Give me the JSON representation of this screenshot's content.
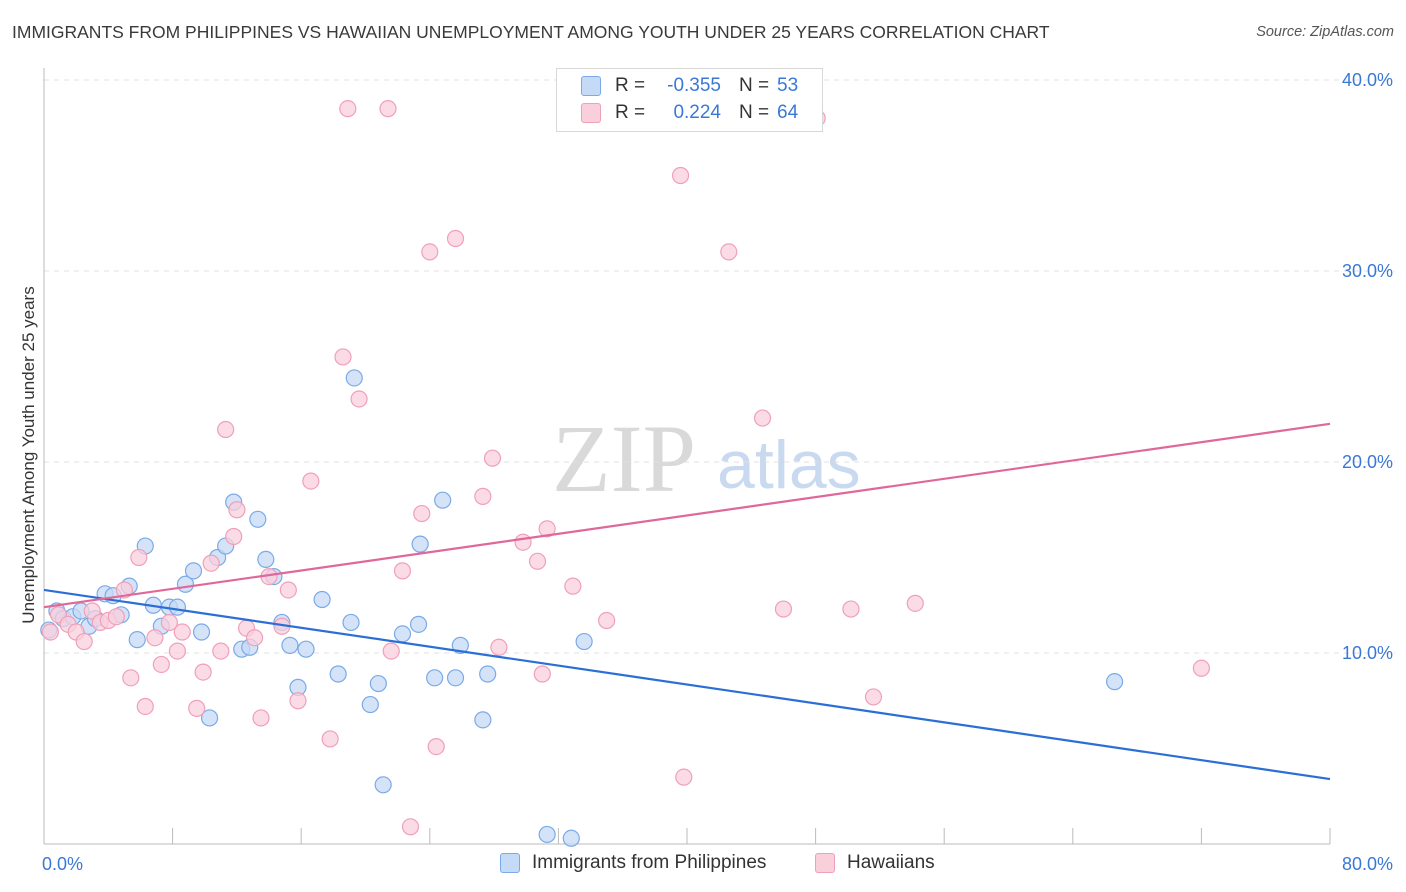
{
  "header": {
    "title": "IMMIGRANTS FROM PHILIPPINES VS HAWAIIAN UNEMPLOYMENT AMONG YOUTH UNDER 25 YEARS CORRELATION CHART",
    "source": "Source: ZipAtlas.com"
  },
  "legend_top": {
    "rows": [
      {
        "r_label": "R =",
        "r_value": "-0.355",
        "n_label": "N =",
        "n_value": "53",
        "color": "#7aaae8",
        "fill": "#c5daf6"
      },
      {
        "r_label": "R =",
        "r_value": "0.224",
        "n_label": "N =",
        "n_value": "64",
        "color": "#f0a0b8",
        "fill": "#f9cfdc"
      }
    ]
  },
  "legend_bottom": {
    "items": [
      {
        "label": "Immigrants from Philippines",
        "color": "#7aaae8",
        "fill": "#c5daf6"
      },
      {
        "label": "Hawaiians",
        "color": "#f0a0b8",
        "fill": "#f9cfdc"
      }
    ]
  },
  "watermark": {
    "zip": "ZIP",
    "atlas": "atlas"
  },
  "chart_data": {
    "type": "scatter",
    "title": "IMMIGRANTS FROM PHILIPPINES VS HAWAIIAN UNEMPLOYMENT AMONG YOUTH UNDER 25 YEARS CORRELATION CHART",
    "xlabel": "",
    "ylabel": "Unemployment Among Youth under 25 years",
    "xlim": [
      0,
      80
    ],
    "ylim": [
      0,
      40
    ],
    "x_tick_labels": [
      {
        "value": 0,
        "label": "0.0%"
      },
      {
        "value": 80,
        "label": "80.0%"
      }
    ],
    "y_tick_labels": [
      {
        "value": 10,
        "label": "10.0%"
      },
      {
        "value": 20,
        "label": "20.0%"
      },
      {
        "value": 30,
        "label": "30.0%"
      },
      {
        "value": 40,
        "label": "40.0%"
      }
    ],
    "grid": true,
    "series": [
      {
        "name": "Immigrants from Philippines",
        "color": "#7aaae8",
        "fill": "#c5daf6",
        "trend_color": "#2b6fd6",
        "trend": {
          "x0": 0,
          "y0": 13.3,
          "x1": 80,
          "y1": 3.4
        },
        "points": [
          [
            0.3,
            11.2
          ],
          [
            0.8,
            12.2
          ],
          [
            1.2,
            11.8
          ],
          [
            1.8,
            11.9
          ],
          [
            2.3,
            12.2
          ],
          [
            2.8,
            11.4
          ],
          [
            3.2,
            11.8
          ],
          [
            3.8,
            13.1
          ],
          [
            4.3,
            13.0
          ],
          [
            4.8,
            12.0
          ],
          [
            5.3,
            13.5
          ],
          [
            5.8,
            10.7
          ],
          [
            6.3,
            15.6
          ],
          [
            6.8,
            12.5
          ],
          [
            7.3,
            11.4
          ],
          [
            7.8,
            12.4
          ],
          [
            8.3,
            12.4
          ],
          [
            8.8,
            13.6
          ],
          [
            9.3,
            14.3
          ],
          [
            9.8,
            11.1
          ],
          [
            10.3,
            6.6
          ],
          [
            10.8,
            15.0
          ],
          [
            11.3,
            15.6
          ],
          [
            11.8,
            17.9
          ],
          [
            12.3,
            10.2
          ],
          [
            12.8,
            10.3
          ],
          [
            13.3,
            17.0
          ],
          [
            13.8,
            14.9
          ],
          [
            14.3,
            14.0
          ],
          [
            14.8,
            11.6
          ],
          [
            15.3,
            10.4
          ],
          [
            15.8,
            8.2
          ],
          [
            16.3,
            10.2
          ],
          [
            17.3,
            12.8
          ],
          [
            18.3,
            8.9
          ],
          [
            19.1,
            11.6
          ],
          [
            19.3,
            24.4
          ],
          [
            20.3,
            7.3
          ],
          [
            20.8,
            8.4
          ],
          [
            21.1,
            3.1
          ],
          [
            22.3,
            11.0
          ],
          [
            23.3,
            11.5
          ],
          [
            23.4,
            15.7
          ],
          [
            24.3,
            8.7
          ],
          [
            24.8,
            18.0
          ],
          [
            25.6,
            8.7
          ],
          [
            25.9,
            10.4
          ],
          [
            27.3,
            6.5
          ],
          [
            27.6,
            8.9
          ],
          [
            31.3,
            0.5
          ],
          [
            32.8,
            0.3
          ],
          [
            33.6,
            10.6
          ],
          [
            66.6,
            8.5
          ]
        ]
      },
      {
        "name": "Hawaiians",
        "color": "#f0a0b8",
        "fill": "#f9cfdc",
        "trend_color": "#e0679a",
        "trend": {
          "x0": 0,
          "y0": 12.4,
          "x1": 80,
          "y1": 22.0
        },
        "points": [
          [
            0.4,
            11.1
          ],
          [
            0.9,
            12.0
          ],
          [
            1.5,
            11.5
          ],
          [
            2.0,
            11.1
          ],
          [
            2.5,
            10.6
          ],
          [
            3.0,
            12.2
          ],
          [
            3.5,
            11.6
          ],
          [
            4.0,
            11.7
          ],
          [
            4.5,
            11.9
          ],
          [
            5.0,
            13.3
          ],
          [
            5.4,
            8.7
          ],
          [
            5.9,
            15.0
          ],
          [
            6.3,
            7.2
          ],
          [
            6.9,
            10.8
          ],
          [
            7.3,
            9.4
          ],
          [
            7.8,
            11.6
          ],
          [
            8.3,
            10.1
          ],
          [
            8.6,
            11.1
          ],
          [
            9.5,
            7.1
          ],
          [
            9.9,
            9.0
          ],
          [
            10.4,
            14.7
          ],
          [
            11.0,
            10.1
          ],
          [
            11.3,
            21.7
          ],
          [
            11.8,
            16.1
          ],
          [
            12.0,
            17.5
          ],
          [
            12.6,
            11.3
          ],
          [
            13.1,
            10.8
          ],
          [
            13.5,
            6.6
          ],
          [
            14.0,
            14.0
          ],
          [
            14.8,
            11.4
          ],
          [
            15.2,
            13.3
          ],
          [
            15.8,
            7.5
          ],
          [
            16.6,
            19.0
          ],
          [
            17.8,
            5.5
          ],
          [
            18.6,
            25.5
          ],
          [
            18.9,
            38.5
          ],
          [
            19.6,
            23.3
          ],
          [
            21.4,
            38.5
          ],
          [
            21.6,
            10.1
          ],
          [
            22.3,
            14.3
          ],
          [
            22.8,
            0.9
          ],
          [
            23.5,
            17.3
          ],
          [
            24.0,
            31.0
          ],
          [
            24.4,
            5.1
          ],
          [
            25.6,
            31.7
          ],
          [
            27.3,
            18.2
          ],
          [
            27.9,
            20.2
          ],
          [
            28.3,
            10.3
          ],
          [
            29.8,
            15.8
          ],
          [
            30.7,
            14.8
          ],
          [
            31.0,
            8.9
          ],
          [
            31.3,
            16.5
          ],
          [
            32.9,
            13.5
          ],
          [
            35.0,
            11.7
          ],
          [
            39.6,
            35.0
          ],
          [
            39.8,
            3.5
          ],
          [
            42.6,
            31.0
          ],
          [
            44.7,
            22.3
          ],
          [
            46.0,
            12.3
          ],
          [
            50.2,
            12.3
          ],
          [
            51.6,
            7.7
          ],
          [
            54.2,
            12.6
          ],
          [
            72.0,
            9.2
          ],
          [
            48.1,
            38.0
          ]
        ]
      }
    ]
  }
}
